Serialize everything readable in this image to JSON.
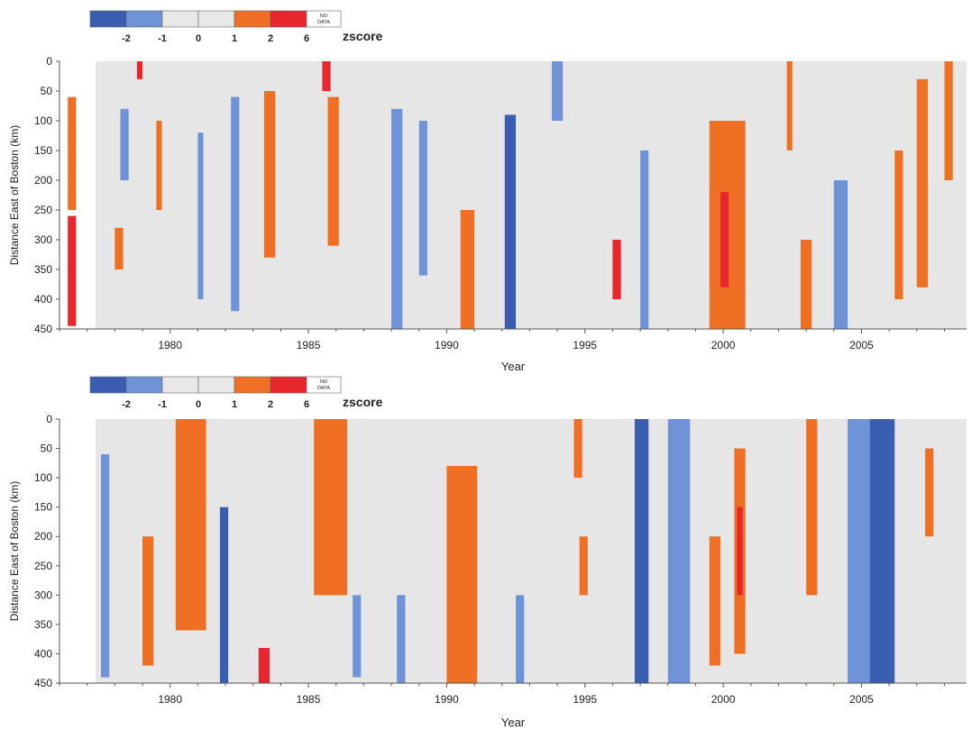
{
  "legend": {
    "title": "zscore",
    "tick_labels": [
      "-2",
      "-1",
      "0",
      "1",
      "2",
      "6"
    ],
    "no_data_label": "NO DATA",
    "bins": [
      {
        "from": -3,
        "to": -2,
        "color": "#3a5db0"
      },
      {
        "from": -2,
        "to": -1,
        "color": "#6f93d6"
      },
      {
        "from": -1,
        "to": 0,
        "color": "#e8e8e8"
      },
      {
        "from": 0,
        "to": 1,
        "color": "#e8e8e8"
      },
      {
        "from": 1,
        "to": 2,
        "color": "#ef6f24"
      },
      {
        "from": 2,
        "to": 6,
        "color": "#e8262e"
      }
    ]
  },
  "chart_data": [
    {
      "type": "heatmap",
      "xlabel": "Year",
      "ylabel": "Distance East of Boston (km)",
      "xlim": [
        1976.0,
        2008.8
      ],
      "ylim": [
        0,
        450
      ],
      "y_inverted": true,
      "xticks": [
        1980,
        1985,
        1990,
        1995,
        2000,
        2005
      ],
      "yticks": [
        0,
        50,
        100,
        150,
        200,
        250,
        300,
        350,
        400,
        450
      ],
      "stripes": [
        {
          "x0": 1976.3,
          "x1": 1976.6,
          "y0": 60,
          "y1": 250,
          "z": 1.5
        },
        {
          "x0": 1976.3,
          "x1": 1976.6,
          "y0": 260,
          "y1": 445,
          "z": 3.0
        },
        {
          "x0": 1978.2,
          "x1": 1978.5,
          "y0": 80,
          "y1": 200,
          "z": -1.5
        },
        {
          "x0": 1978.0,
          "x1": 1978.3,
          "y0": 280,
          "y1": 350,
          "z": 1.5
        },
        {
          "x0": 1978.8,
          "x1": 1979.0,
          "y0": 0,
          "y1": 30,
          "z": 2.5
        },
        {
          "x0": 1979.5,
          "x1": 1979.7,
          "y0": 100,
          "y1": 250,
          "z": 1.5
        },
        {
          "x0": 1981.0,
          "x1": 1981.2,
          "y0": 120,
          "y1": 400,
          "z": -1.5
        },
        {
          "x0": 1982.2,
          "x1": 1982.5,
          "y0": 60,
          "y1": 420,
          "z": -1.5
        },
        {
          "x0": 1983.4,
          "x1": 1983.8,
          "y0": 50,
          "y1": 330,
          "z": 1.5
        },
        {
          "x0": 1985.5,
          "x1": 1985.8,
          "y0": 0,
          "y1": 50,
          "z": 3.0
        },
        {
          "x0": 1985.7,
          "x1": 1986.1,
          "y0": 60,
          "y1": 310,
          "z": 1.5
        },
        {
          "x0": 1988.0,
          "x1": 1988.4,
          "y0": 80,
          "y1": 450,
          "z": -1.5
        },
        {
          "x0": 1989.0,
          "x1": 1989.3,
          "y0": 100,
          "y1": 360,
          "z": -1.5
        },
        {
          "x0": 1990.5,
          "x1": 1991.0,
          "y0": 250,
          "y1": 450,
          "z": 1.5
        },
        {
          "x0": 1992.1,
          "x1": 1992.5,
          "y0": 90,
          "y1": 450,
          "z": -2.5
        },
        {
          "x0": 1993.8,
          "x1": 1994.2,
          "y0": 0,
          "y1": 100,
          "z": -1.5
        },
        {
          "x0": 1996.0,
          "x1": 1996.3,
          "y0": 300,
          "y1": 400,
          "z": 2.5
        },
        {
          "x0": 1997.0,
          "x1": 1997.3,
          "y0": 150,
          "y1": 450,
          "z": -1.5
        },
        {
          "x0": 1999.5,
          "x1": 2000.8,
          "y0": 100,
          "y1": 450,
          "z": 1.5
        },
        {
          "x0": 1999.9,
          "x1": 2000.2,
          "y0": 220,
          "y1": 380,
          "z": 3.0
        },
        {
          "x0": 2002.3,
          "x1": 2002.5,
          "y0": 0,
          "y1": 150,
          "z": 1.5
        },
        {
          "x0": 2002.8,
          "x1": 2003.2,
          "y0": 300,
          "y1": 450,
          "z": 1.5
        },
        {
          "x0": 2004.0,
          "x1": 2004.5,
          "y0": 200,
          "y1": 450,
          "z": -1.5
        },
        {
          "x0": 2006.2,
          "x1": 2006.5,
          "y0": 150,
          "y1": 400,
          "z": 1.5
        },
        {
          "x0": 2007.0,
          "x1": 2007.4,
          "y0": 30,
          "y1": 380,
          "z": 1.5
        },
        {
          "x0": 2008.0,
          "x1": 2008.3,
          "y0": 0,
          "y1": 200,
          "z": 1.5
        }
      ]
    },
    {
      "type": "heatmap",
      "xlabel": "Year",
      "ylabel": "Distance East of Boston (km)",
      "xlim": [
        1976.0,
        2008.8
      ],
      "ylim": [
        0,
        450
      ],
      "y_inverted": true,
      "xticks": [
        1980,
        1985,
        1990,
        1995,
        2000,
        2005
      ],
      "yticks": [
        0,
        50,
        100,
        150,
        200,
        250,
        300,
        350,
        400,
        450
      ],
      "stripes": [
        {
          "x0": 1977.5,
          "x1": 1977.8,
          "y0": 60,
          "y1": 440,
          "z": -1.5
        },
        {
          "x0": 1979.0,
          "x1": 1979.4,
          "y0": 200,
          "y1": 420,
          "z": 1.5
        },
        {
          "x0": 1980.2,
          "x1": 1981.3,
          "y0": 0,
          "y1": 360,
          "z": 1.5
        },
        {
          "x0": 1981.8,
          "x1": 1982.1,
          "y0": 150,
          "y1": 450,
          "z": -2.5
        },
        {
          "x0": 1983.2,
          "x1": 1983.6,
          "y0": 390,
          "y1": 450,
          "z": 3.0
        },
        {
          "x0": 1985.2,
          "x1": 1986.4,
          "y0": 0,
          "y1": 300,
          "z": 1.5
        },
        {
          "x0": 1986.6,
          "x1": 1986.9,
          "y0": 300,
          "y1": 440,
          "z": -1.5
        },
        {
          "x0": 1988.2,
          "x1": 1988.5,
          "y0": 300,
          "y1": 450,
          "z": -1.5
        },
        {
          "x0": 1990.0,
          "x1": 1991.1,
          "y0": 80,
          "y1": 450,
          "z": 1.5
        },
        {
          "x0": 1992.5,
          "x1": 1992.8,
          "y0": 300,
          "y1": 450,
          "z": -1.5
        },
        {
          "x0": 1994.6,
          "x1": 1994.9,
          "y0": 0,
          "y1": 100,
          "z": 1.5
        },
        {
          "x0": 1994.8,
          "x1": 1995.1,
          "y0": 200,
          "y1": 300,
          "z": 1.5
        },
        {
          "x0": 1996.8,
          "x1": 1997.3,
          "y0": 0,
          "y1": 450,
          "z": -2.5
        },
        {
          "x0": 1998.0,
          "x1": 1998.8,
          "y0": 0,
          "y1": 450,
          "z": -1.5
        },
        {
          "x0": 1999.5,
          "x1": 1999.9,
          "y0": 200,
          "y1": 420,
          "z": 1.5
        },
        {
          "x0": 2000.4,
          "x1": 2000.8,
          "y0": 50,
          "y1": 400,
          "z": 1.5
        },
        {
          "x0": 2000.5,
          "x1": 2000.7,
          "y0": 150,
          "y1": 300,
          "z": 3.0
        },
        {
          "x0": 2003.0,
          "x1": 2003.4,
          "y0": 0,
          "y1": 300,
          "z": 1.5
        },
        {
          "x0": 2004.5,
          "x1": 2005.3,
          "y0": 0,
          "y1": 450,
          "z": -1.5
        },
        {
          "x0": 2005.3,
          "x1": 2006.2,
          "y0": 0,
          "y1": 450,
          "z": -2.5
        },
        {
          "x0": 2007.3,
          "x1": 2007.6,
          "y0": 50,
          "y1": 200,
          "z": 1.5
        }
      ]
    }
  ]
}
